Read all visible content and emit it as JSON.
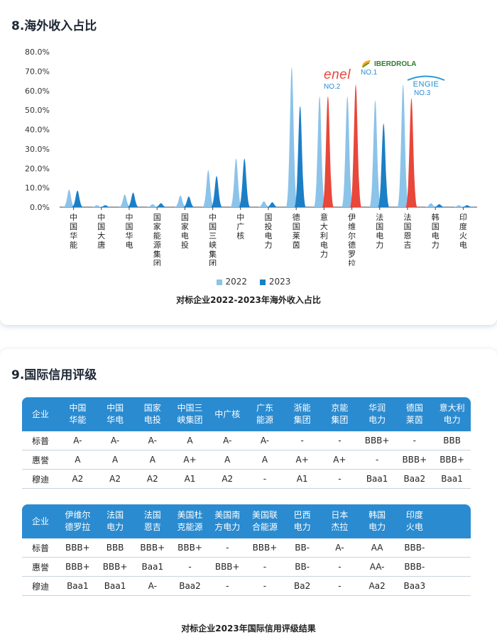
{
  "section8": {
    "title": "8.海外收入占比",
    "caption": "对标企业2022-2023年海外收入占比",
    "legend": [
      "2022",
      "2023"
    ],
    "logos": {
      "enel": {
        "name": "enel",
        "rank": "NO.2"
      },
      "iberdrola": {
        "name": "IBERDROLA",
        "rank": "NO.1"
      },
      "engie": {
        "name": "ENGIE",
        "rank": "NO.3"
      }
    }
  },
  "chart_data": {
    "type": "area",
    "categories": [
      "中国华能",
      "中国大唐",
      "中国华电",
      "国家能源集团",
      "国家电投",
      "中国三峡集团",
      "中广核",
      "国投电力",
      "德国莱茵",
      "意大利电力",
      "伊维尔德罗拉",
      "法国电力",
      "法国恩吉",
      "韩国电力",
      "印度火电"
    ],
    "series": [
      {
        "name": "2022",
        "values": [
          9.0,
          1.0,
          6.5,
          1.5,
          6.0,
          19.0,
          25.0,
          3.0,
          72.0,
          57.0,
          57.0,
          55.0,
          63.0,
          2.0,
          1.0
        ]
      },
      {
        "name": "2023",
        "values": [
          8.5,
          1.0,
          7.5,
          2.0,
          5.5,
          16.0,
          25.0,
          2.5,
          52.0,
          57.0,
          63.0,
          43.0,
          56.0,
          1.5,
          1.0
        ]
      }
    ],
    "highlight": {
      "categories": [
        "意大利电力",
        "伊维尔德罗拉",
        "法国恩吉"
      ],
      "series": "2023",
      "color": "#e8473a"
    },
    "y_ticks": [
      "0.0%",
      "10.0%",
      "20.0%",
      "30.0%",
      "40.0%",
      "50.0%",
      "60.0%",
      "70.0%",
      "80.0%"
    ],
    "ylim": [
      0,
      80
    ],
    "colors": {
      "2022": "#8cc3e9",
      "2023": "#1c7fc6"
    },
    "grid": false,
    "legend_position": "bottom"
  },
  "section9": {
    "title": "9.国际信用评级",
    "caption": "对标企业2023年国际信用评级结果",
    "table1": {
      "header": [
        "企业",
        "中国\n华能",
        "中国\n华电",
        "国家\n电投",
        "中国三\n峡集团",
        "中广核",
        "广东\n能源",
        "浙能\n集团",
        "京能\n集团",
        "华润\n电力",
        "德国\n莱茵",
        "意大利\n电力"
      ],
      "rows": [
        [
          "标普",
          "A-",
          "A-",
          "A-",
          "A",
          "A-",
          "A-",
          "-",
          "-",
          "BBB+",
          "-",
          "BBB"
        ],
        [
          "惠誉",
          "A",
          "A",
          "A",
          "A+",
          "A",
          "A",
          "A+",
          "A+",
          "-",
          "BBB+",
          "BBB+"
        ],
        [
          "穆迪",
          "A2",
          "A2",
          "A2",
          "A1",
          "A2",
          "-",
          "A1",
          "-",
          "Baa1",
          "Baa2",
          "Baa1"
        ]
      ]
    },
    "table2": {
      "header": [
        "企业",
        "伊维尔\n德罗拉",
        "法国\n电力",
        "法国\n恩吉",
        "美国杜\n克能源",
        "美国南\n方电力",
        "美国联\n合能源",
        "巴西\n电力",
        "日本\n杰拉",
        "韩国\n电力",
        "印度\n火电",
        ""
      ],
      "rows": [
        [
          "标普",
          "BBB+",
          "BBB",
          "BBB+",
          "BBB+",
          "-",
          "BBB+",
          "BB-",
          "A-",
          "AA",
          "BBB-",
          ""
        ],
        [
          "惠誉",
          "BBB+",
          "BBB+",
          "Baa1",
          "-",
          "BBB+",
          "-",
          "BB-",
          "-",
          "AA-",
          "BBB-",
          ""
        ],
        [
          "穆迪",
          "Baa1",
          "Baa1",
          "A-",
          "Baa2",
          "-",
          "-",
          "Ba2",
          "-",
          "Aa2",
          "Baa3",
          ""
        ]
      ]
    }
  }
}
